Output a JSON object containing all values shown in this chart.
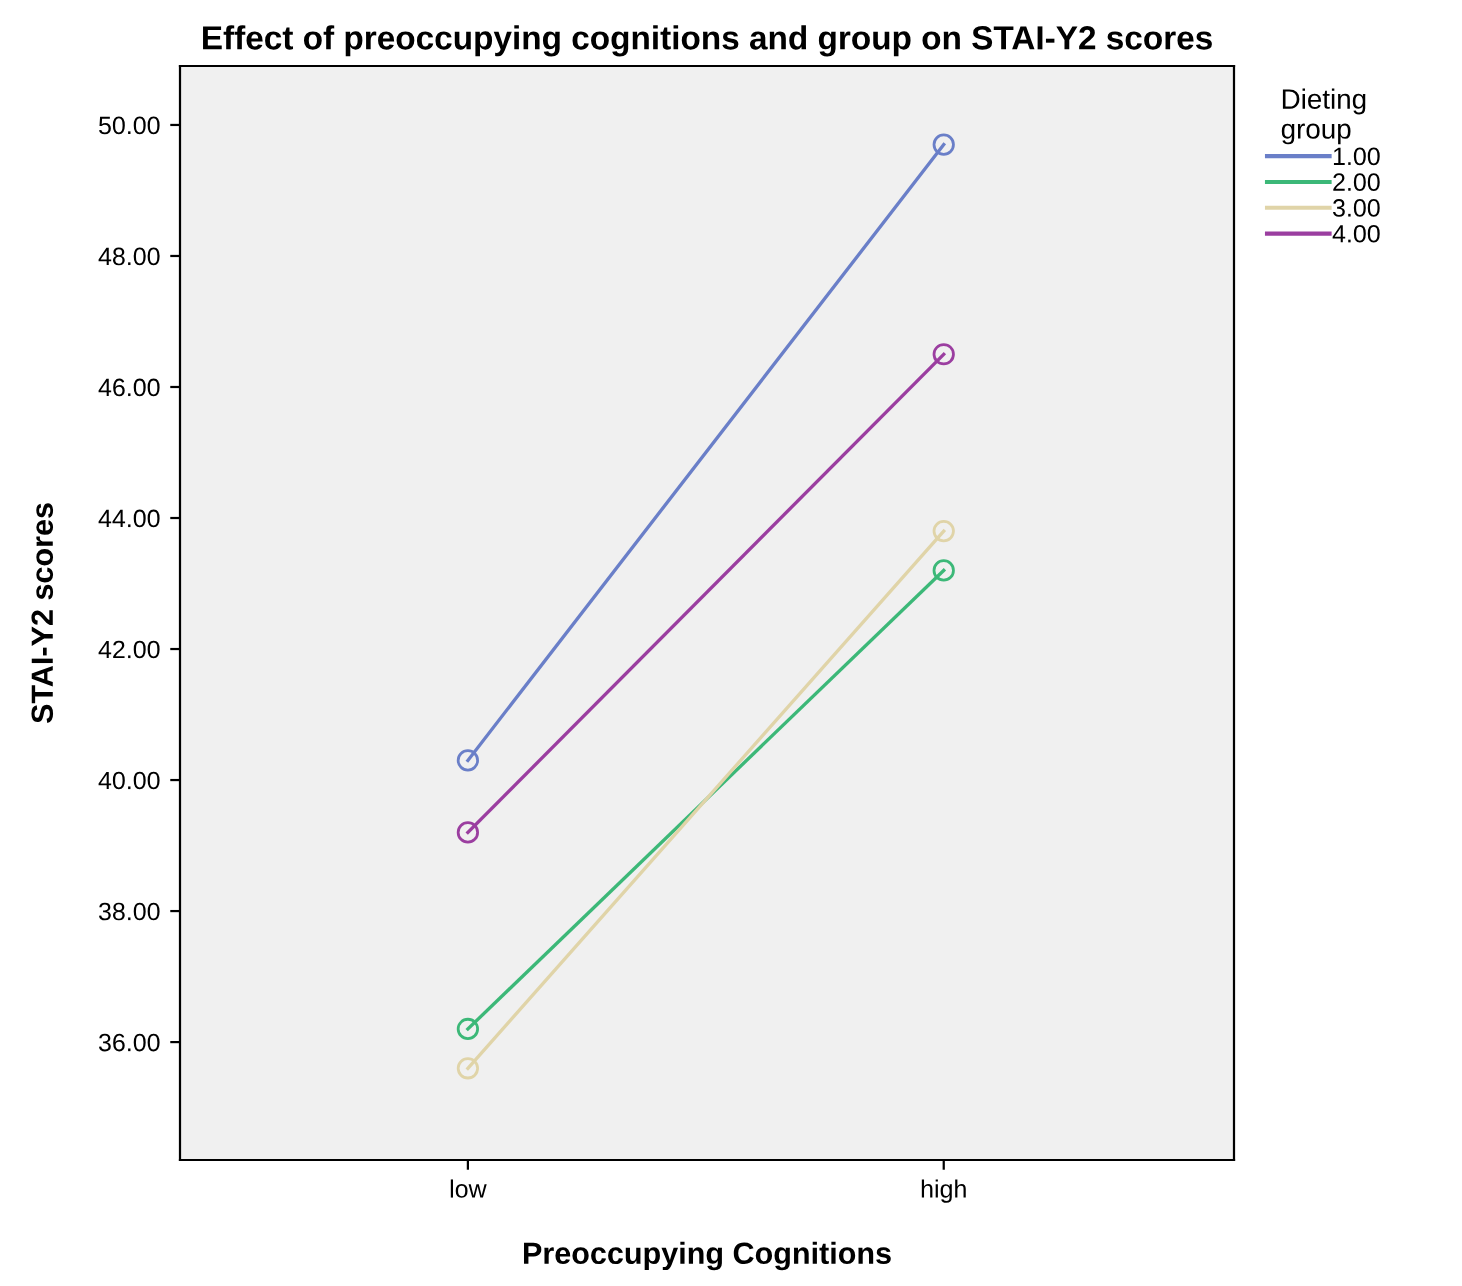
{
  "chart_data": {
    "type": "line",
    "title": "Effect of preoccupying cognitions and group on STAI-Y2 scores",
    "xlabel": "Preoccupying Cognitions",
    "ylabel": "STAI-Y2 scores",
    "legend_title": "Dieting\ngroup",
    "categories": [
      "low",
      "high"
    ],
    "series": [
      {
        "name": "1.00",
        "color": "#6a7fc8",
        "values": [
          40.3,
          49.7
        ]
      },
      {
        "name": "2.00",
        "color": "#3cb878",
        "values": [
          36.2,
          43.2
        ]
      },
      {
        "name": "3.00",
        "color": "#e0d4a8",
        "values": [
          35.6,
          43.8
        ]
      },
      {
        "name": "4.00",
        "color": "#9b3ea0",
        "values": [
          39.2,
          46.5
        ]
      }
    ],
    "ylim": [
      34.2,
      50.9
    ],
    "yticks": [
      {
        "value": 36,
        "label": "36.00"
      },
      {
        "value": 38,
        "label": "38.00"
      },
      {
        "value": 40,
        "label": "40.00"
      },
      {
        "value": 42,
        "label": "42.00"
      },
      {
        "value": 44,
        "label": "44.00"
      },
      {
        "value": 46,
        "label": "46.00"
      },
      {
        "value": 48,
        "label": "48.00"
      },
      {
        "value": 50,
        "label": "50.00"
      }
    ],
    "marker": "circle",
    "line_style": "solid",
    "grid": false,
    "legend": "right"
  }
}
